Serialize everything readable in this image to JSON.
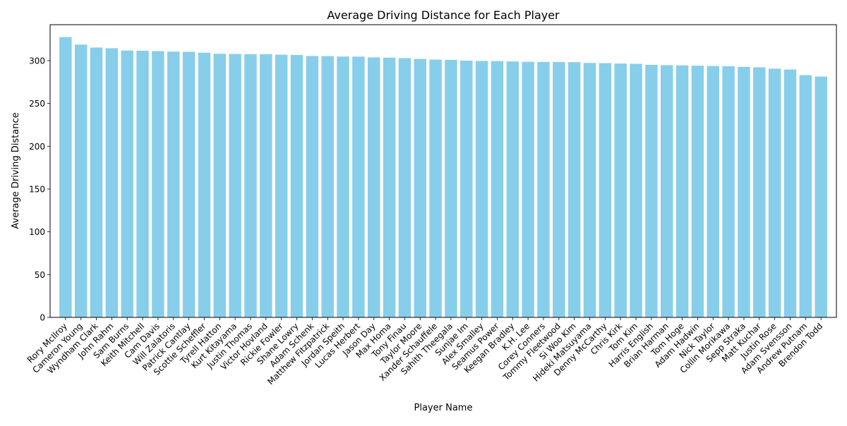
{
  "chart_data": {
    "type": "bar",
    "title": "Average Driving Distance for Each Player",
    "xlabel": "Player Name",
    "ylabel": "Average Driving Distance",
    "ylim": [
      0,
      342
    ],
    "yticks": [
      0,
      50,
      100,
      150,
      200,
      250,
      300
    ],
    "grid": false,
    "bar_color": "#87CEEB",
    "categories": [
      "Rory McIlroy",
      "Cameron Young",
      "Wyndham Clark",
      "John Rahm",
      "Sam Burns",
      "Keith Mitchell",
      "Cam Davis",
      "Will Zalatoris",
      "Patrick Cantlay",
      "Scottie Scheffler",
      "Tyrell Hatton",
      "Kurt Kitayama",
      "Justin Thomas",
      "Victor Hovland",
      "Rickie Fowler",
      "Shane Lowry",
      "Adam Schenk",
      "Matthew Fitzpatrick",
      "Jordan Speith",
      "Lucas Herbert",
      "Jason Day",
      "Max Homa",
      "Tony Finau",
      "Taylor Moore",
      "Xander Schauffele",
      "Sahith Theegala",
      "Sunjae Im",
      "Alex Smalley",
      "Seamus Power",
      "Keegan Bradley",
      "K.H. Lee",
      "Corey Conners",
      "Tommy Fleetwood",
      "Si Woo Kim",
      "Hideki Matsuyama",
      "Denny McCarthy",
      "Chris Kirk",
      "Tom Kim",
      "Harris English",
      "Brian Harman",
      "Tom Hoge",
      "Adam Hadwin",
      "Nick Taylor",
      "Collin Morikawa",
      "Sepp Straka",
      "Matt Kuchar",
      "Justin Rose",
      "Adam Svensson",
      "Andrew Putnam",
      "Brendon Todd"
    ],
    "values": [
      327.5,
      318.7,
      315.3,
      314.5,
      311.8,
      311.6,
      311.1,
      310.5,
      310.3,
      309.3,
      308.0,
      307.8,
      307.6,
      307.6,
      306.9,
      306.6,
      305.4,
      305.3,
      304.8,
      304.7,
      303.8,
      303.5,
      302.9,
      302.0,
      301.2,
      300.9,
      300.0,
      299.6,
      299.4,
      299.0,
      298.6,
      298.5,
      298.4,
      298.2,
      297.3,
      297.1,
      296.6,
      296.3,
      295.1,
      294.7,
      294.4,
      294.1,
      293.7,
      293.5,
      292.7,
      292.2,
      290.6,
      289.6,
      283.0,
      281.4
    ]
  }
}
